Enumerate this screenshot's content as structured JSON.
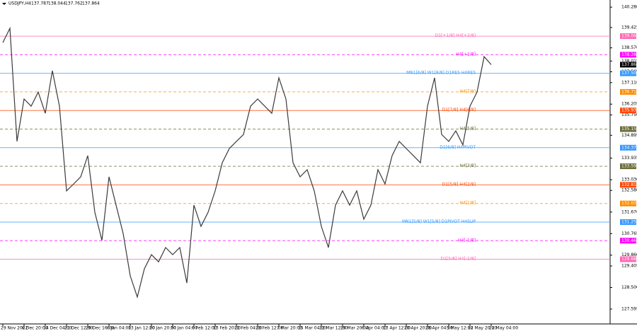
{
  "chart_data": {
    "type": "line",
    "title": "USDJPY,H4",
    "ohlc": [
      137.787,
      138.044,
      137.762,
      137.864
    ],
    "color": "#3a3a3a",
    "categories": [
      "29 Nov 2022",
      null,
      null,
      "6 Dec 20:00",
      null,
      null,
      "14 Dec 04:00",
      null,
      null,
      "21 Dec 12:00",
      null,
      null,
      "29 Dec 16:00",
      null,
      null,
      "6 Jan 04:00",
      null,
      null,
      "13 Jan 12:00",
      null,
      null,
      "20 Jan 20:00",
      null,
      null,
      "30 Jan 04:00",
      null,
      null,
      "6 Feb 12:00",
      null,
      null,
      "13 Feb 20:00",
      null,
      null,
      "21 Feb 04:00",
      null,
      null,
      "28 Feb 12:00",
      null,
      null,
      "7 Mar 20:00",
      null,
      null,
      "15 Mar 04:00",
      null,
      null,
      "22 Mar 12:00",
      null,
      null,
      "29 Mar 20:00",
      null,
      null,
      "6 Apr 04:00",
      null,
      null,
      "13 Apr 12:00",
      null,
      null,
      "20 Apr 20:00",
      null,
      null,
      "28 Apr 04:00",
      null,
      null,
      "5 May 12:00",
      null,
      null,
      "12 May 20:00",
      null,
      null,
      "22 May 04:00"
    ],
    "values": [
      138.79,
      139.39,
      134.64,
      136.42,
      136.12,
      136.71,
      135.82,
      137.61,
      136.12,
      132.56,
      132.85,
      133.15,
      134.04,
      131.66,
      130.48,
      133.15,
      131.96,
      130.77,
      128.99,
      128.1,
      129.29,
      129.88,
      129.58,
      130.18,
      129.88,
      130.18,
      128.69,
      131.96,
      131.07,
      131.66,
      132.56,
      133.74,
      134.34,
      134.64,
      134.93,
      136.12,
      136.42,
      136.12,
      135.82,
      137.31,
      136.42,
      133.74,
      133.15,
      133.45,
      132.56,
      131.07,
      130.18,
      131.96,
      132.56,
      131.96,
      132.56,
      131.37,
      131.96,
      133.45,
      132.85,
      134.04,
      134.64,
      134.34,
      134.04,
      133.74,
      136.12,
      137.31,
      134.93,
      134.64,
      135.08,
      134.49,
      136.12,
      136.71,
      138.2,
      137.864
    ],
    "ylim": [
      126.97,
      140.58
    ],
    "yticks": [
      {
        "value": 140.28,
        "label": "140.280"
      },
      139.425,
      {
        "value": 138.57,
        "label": "138.570"
      },
      138.015,
      137.565,
      {
        "value": 137.11,
        "label": "137.110"
      },
      136.205,
      {
        "value": 135.75,
        "label": "135.750"
      },
      134.895,
      133.935,
      {
        "value": 133.03,
        "label": "133.030"
      },
      {
        "value": 132.58,
        "label": "132.580"
      },
      {
        "value": 131.67,
        "label": "131.670"
      },
      130.765,
      {
        "value": 129.86,
        "label": "129.860"
      },
      129.405,
      {
        "value": 128.5,
        "label": "128.500"
      },
      127.595
    ],
    "levels": [
      {
        "label": "D1[+1/8] H4[+2/8]",
        "value": 139.062,
        "color": "#ff66b3",
        "dashed": false
      },
      {
        "label": "H4[+1/8]",
        "value": 138.281,
        "color": "#ff00ff",
        "dashed": true
      },
      {
        "label": "MN1[6/8] W1[8/8] D1RES H4RES",
        "value": 137.5,
        "value_label": "137.500",
        "color": "#3399ff",
        "dashed": false
      },
      {
        "label": "H4[7/8]",
        "value": 136.719,
        "color": "#ff8c00",
        "dashed": true
      },
      {
        "label": "D1[7/8] H4[6/8]",
        "value": 135.938,
        "color": "#ff4500",
        "dashed": false
      },
      {
        "label": "H4[5/8]",
        "value": 135.156,
        "color": "#6b6b3a",
        "dashed": true
      },
      {
        "label": "D1[6/8] H4PIVOT",
        "value": 134.375,
        "color": "#3399ff",
        "dashed": false
      },
      {
        "label": "H4[3/8]",
        "value": 133.594,
        "color": "#6b6b3a",
        "dashed": true
      },
      {
        "label": "D1[5/8] H4[2/8]",
        "value": 132.813,
        "color": "#ff4500",
        "dashed": false
      },
      {
        "label": "H4[1/8]",
        "value": 132.031,
        "color": "#ff8c00",
        "dashed": true
      },
      {
        "label": "MN1[5/8] W1[5/8] D1PIVOT H4SUP",
        "value": 131.25,
        "value_label": "131.250",
        "color": "#3399ff",
        "dashed": false
      },
      {
        "label": "H4[-1/8]",
        "value": 130.469,
        "color": "#ff00ff",
        "dashed": true
      },
      {
        "label": "D1[5/8] H4[-2/8]",
        "value": 129.688,
        "color": "#ff66b3",
        "dashed": false
      }
    ]
  }
}
